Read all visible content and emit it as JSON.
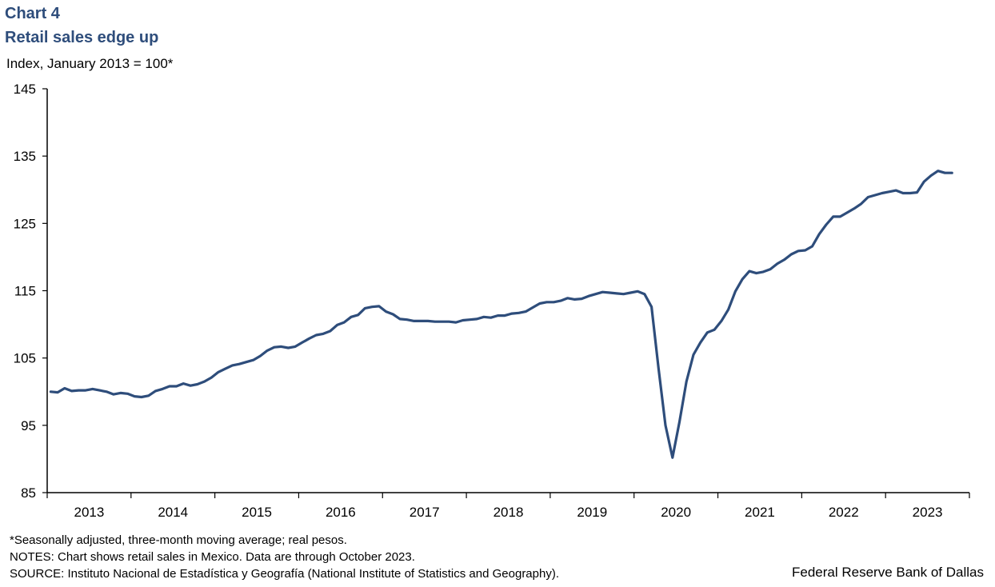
{
  "header": {
    "chart_label": "Chart 4",
    "title": "Retail sales edge up",
    "y_unit": "Index, January 2013 = 100*"
  },
  "footer": {
    "note1": "*Seasonally adjusted, three-month moving average; real pesos.",
    "note2": "NOTES: Chart shows retail sales in Mexico. Data are through October 2023.",
    "source": "SOURCE: Instituto Nacional de Estadística y Geografía (National Institute of Statistics and Geography).",
    "credit": "Federal Reserve Bank of Dallas"
  },
  "colors": {
    "line": "#2e4d7b",
    "title": "#2e4d7b",
    "axis": "#000000"
  },
  "chart_data": {
    "type": "line",
    "title": "Retail sales edge up",
    "ylabel": "Index, January 2013 = 100*",
    "xlabel": "",
    "ylim": [
      85,
      145
    ],
    "yticks": [
      85,
      95,
      105,
      115,
      125,
      135,
      145
    ],
    "years": [
      "2013",
      "2014",
      "2015",
      "2016",
      "2017",
      "2018",
      "2019",
      "2020",
      "2021",
      "2022",
      "2023"
    ],
    "start": "2013-01",
    "end": "2023-10",
    "grid": false,
    "legend": "none",
    "series": [
      {
        "values": [
          100.0,
          99.9,
          100.5,
          100.1,
          100.2,
          100.2,
          100.4,
          100.2,
          100.0,
          99.6,
          99.8,
          99.7,
          99.3,
          99.2,
          99.4,
          100.1,
          100.4,
          100.8,
          100.8,
          101.2,
          100.9,
          101.1,
          101.5,
          102.1,
          102.9,
          103.4,
          103.9,
          104.1,
          104.4,
          104.7,
          105.3,
          106.1,
          106.6,
          106.7,
          106.5,
          106.7,
          107.3,
          107.9,
          108.4,
          108.6,
          109.0,
          109.9,
          110.3,
          111.1,
          111.4,
          112.4,
          112.6,
          112.7,
          111.9,
          111.5,
          110.8,
          110.7,
          110.5,
          110.5,
          110.5,
          110.4,
          110.4,
          110.4,
          110.3,
          110.6,
          110.7,
          110.8,
          111.1,
          111.0,
          111.3,
          111.3,
          111.6,
          111.7,
          111.9,
          112.5,
          113.1,
          113.3,
          113.3,
          113.5,
          113.9,
          113.7,
          113.8,
          114.2,
          114.5,
          114.8,
          114.7,
          114.6,
          114.5,
          114.7,
          114.9,
          114.5,
          112.6,
          103.5,
          95.0,
          90.2,
          95.5,
          101.5,
          105.5,
          107.3,
          108.8,
          109.2,
          110.5,
          112.2,
          114.9,
          116.7,
          117.9,
          117.6,
          117.8,
          118.2,
          119.0,
          119.6,
          120.4,
          120.9,
          121.0,
          121.6,
          123.4,
          124.8,
          126.0,
          126.0,
          126.6,
          127.2,
          127.9,
          128.9,
          129.2,
          129.5,
          129.7,
          129.9,
          129.5,
          129.5,
          129.6,
          131.2,
          132.1,
          132.8,
          132.5,
          132.5
        ]
      }
    ]
  }
}
